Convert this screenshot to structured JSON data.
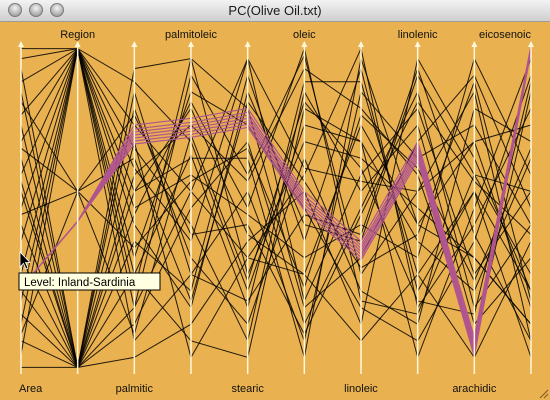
{
  "window": {
    "title": "PC(Olive Oil.txt)"
  },
  "tooltip": {
    "text": "Level: Inland-Sardinia"
  },
  "colors": {
    "background": "#e9b14f",
    "lines": "#000000",
    "highlight": "#b0558f",
    "axis": "#fff8dc"
  },
  "chart_data": {
    "type": "parallel-coordinates",
    "title": "",
    "axes": [
      "Area",
      "Region",
      "palmitic",
      "palmitoleic",
      "stearic",
      "oleic",
      "linoleic",
      "linolenic",
      "arachidic",
      "eicosenoic"
    ],
    "highlight_series": {
      "name": "Inland-Sardinia",
      "values_fraction": [
        0.26,
        0.46,
        0.72,
        0.74,
        0.77,
        0.52,
        0.37,
        0.67,
        0.08,
        0.98
      ]
    },
    "background_polylines": [
      [
        0.06,
        0.98,
        0.55,
        0.8,
        0.42,
        0.3,
        0.75,
        0.45,
        0.7,
        0.2
      ],
      [
        0.98,
        0.98,
        0.3,
        0.66,
        0.2,
        0.88,
        0.88,
        0.3,
        0.55,
        0.25
      ],
      [
        0.5,
        0.98,
        0.62,
        0.4,
        0.95,
        0.22,
        0.6,
        0.8,
        0.3,
        0.55
      ],
      [
        0.7,
        0.98,
        0.2,
        0.9,
        0.6,
        0.96,
        0.3,
        0.55,
        0.85,
        0.1
      ],
      [
        0.3,
        0.98,
        0.75,
        0.55,
        0.35,
        0.6,
        0.98,
        0.2,
        0.45,
        0.8
      ],
      [
        0.88,
        0.98,
        0.45,
        0.2,
        0.85,
        0.45,
        0.4,
        0.9,
        0.6,
        0.3
      ],
      [
        0.15,
        0.98,
        0.88,
        0.7,
        0.25,
        0.75,
        0.7,
        0.4,
        0.25,
        0.65
      ],
      [
        0.6,
        0.98,
        0.1,
        0.3,
        0.55,
        0.1,
        0.85,
        0.65,
        0.75,
        0.45
      ],
      [
        0.4,
        0.98,
        0.35,
        0.85,
        0.75,
        0.5,
        0.2,
        0.1,
        0.4,
        0.9
      ],
      [
        0.78,
        0.98,
        0.68,
        0.45,
        0.1,
        0.85,
        0.55,
        0.75,
        0.15,
        0.35
      ],
      [
        0.22,
        0.98,
        0.5,
        0.6,
        0.48,
        0.35,
        0.45,
        0.35,
        0.95,
        0.6
      ],
      [
        0.95,
        0.98,
        0.25,
        0.95,
        0.3,
        0.7,
        0.65,
        0.5,
        0.35,
        0.15
      ],
      [
        0.1,
        0.02,
        0.4,
        0.25,
        0.9,
        0.4,
        0.92,
        0.25,
        0.55,
        0.05
      ],
      [
        0.55,
        0.02,
        0.15,
        0.5,
        0.7,
        0.15,
        0.5,
        0.85,
        0.2,
        0.45
      ],
      [
        0.85,
        0.02,
        0.8,
        0.35,
        0.15,
        0.65,
        0.25,
        0.15,
        0.8,
        0.7
      ],
      [
        0.35,
        0.02,
        0.6,
        0.75,
        0.58,
        0.92,
        0.8,
        0.6,
        0.1,
        0.85
      ],
      [
        0.65,
        0.02,
        0.05,
        0.15,
        0.4,
        0.55,
        0.15,
        0.95,
        0.65,
        0.25
      ],
      [
        0.02,
        0.02,
        0.92,
        0.95,
        0.8,
        0.2,
        0.35,
        0.7,
        0.9,
        0.5
      ],
      [
        0.92,
        0.02,
        0.3,
        0.1,
        0.05,
        0.8,
        0.7,
        0.05,
        0.5,
        0.95
      ],
      [
        0.45,
        0.02,
        0.55,
        0.65,
        0.65,
        0.05,
        0.95,
        0.45,
        0.35,
        0.15
      ],
      [
        0.25,
        0.02,
        0.7,
        0.05,
        0.35,
        0.3,
        0.1,
        0.3,
        0.05,
        0.4
      ],
      [
        0.75,
        0.02,
        0.2,
        0.55,
        0.95,
        0.62,
        0.58,
        0.55,
        0.7,
        0.75
      ],
      [
        0.18,
        0.02,
        0.85,
        0.3,
        0.22,
        0.48,
        0.42,
        0.92,
        0.42,
        0.1
      ],
      [
        0.58,
        0.02,
        0.48,
        0.82,
        0.5,
        0.98,
        0.22,
        0.18,
        0.6,
        0.55
      ],
      [
        0.82,
        0.55,
        0.38,
        0.58,
        0.68,
        0.26,
        0.78,
        0.62,
        0.28,
        0.68
      ],
      [
        0.12,
        0.55,
        0.65,
        0.22,
        0.82,
        0.58,
        0.32,
        0.42,
        0.88,
        0.22
      ],
      [
        0.48,
        0.55,
        0.12,
        0.72,
        0.28,
        0.82,
        0.62,
        0.22,
        0.18,
        0.88
      ],
      [
        0.68,
        0.55,
        0.78,
        0.42,
        0.45,
        0.12,
        0.48,
        0.82,
        0.58,
        0.42
      ]
    ]
  }
}
